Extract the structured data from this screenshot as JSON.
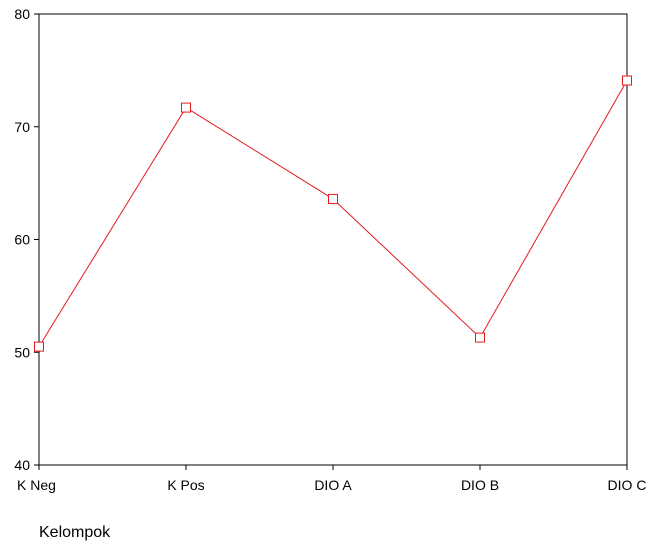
{
  "chart_data": {
    "type": "line",
    "title": "",
    "xlabel": "Kelompok",
    "ylabel": "",
    "categories": [
      "K Neg",
      "K Pos",
      "DIO A",
      "DIO B",
      "DIO C"
    ],
    "series": [
      {
        "values": [
          50.5,
          71.7,
          63.6,
          51.3,
          74.1
        ],
        "color": "#e31a1c",
        "marker": "square"
      }
    ],
    "ylim": [
      40,
      80
    ],
    "yticks": [
      "40",
      "50",
      "60",
      "70",
      "80"
    ],
    "grid": false,
    "legend": "none"
  }
}
